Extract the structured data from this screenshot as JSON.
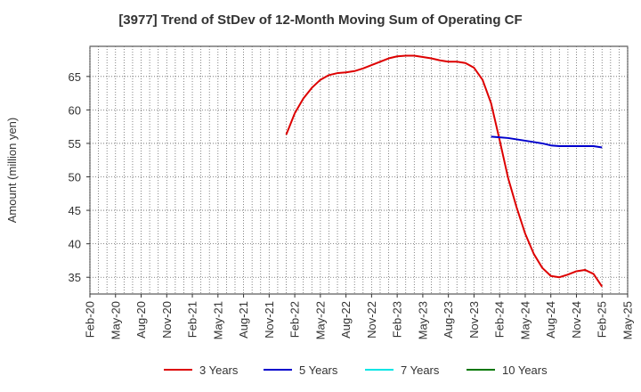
{
  "chart_data": {
    "type": "line",
    "title": "[3977]  Trend of StDev of 12-Month Moving Sum of Operating CF",
    "ylabel": "Amount (million yen)",
    "xlabel": "",
    "ylim": [
      32.5,
      69.5
    ],
    "yticks": [
      35,
      40,
      45,
      50,
      55,
      60,
      65
    ],
    "xticks": [
      "Feb-20",
      "May-20",
      "Aug-20",
      "Nov-20",
      "Feb-21",
      "May-21",
      "Aug-21",
      "Nov-21",
      "Feb-22",
      "May-22",
      "Aug-22",
      "Nov-22",
      "Feb-23",
      "May-23",
      "Aug-23",
      "Nov-23",
      "Feb-24",
      "May-24",
      "Aug-24",
      "Nov-24",
      "Feb-25",
      "May-25"
    ],
    "grid": true,
    "legend_position": "bottom",
    "series": [
      {
        "name": "3 Years",
        "color": "#dd0000",
        "points": [
          [
            "Jan-22",
            56.3
          ],
          [
            "Feb-22",
            59.5
          ],
          [
            "Mar-22",
            61.7
          ],
          [
            "Apr-22",
            63.3
          ],
          [
            "May-22",
            64.5
          ],
          [
            "Jun-22",
            65.2
          ],
          [
            "Jul-22",
            65.5
          ],
          [
            "Aug-22",
            65.6
          ],
          [
            "Sep-22",
            65.8
          ],
          [
            "Oct-22",
            66.2
          ],
          [
            "Nov-22",
            66.7
          ],
          [
            "Dec-22",
            67.2
          ],
          [
            "Jan-23",
            67.7
          ],
          [
            "Feb-23",
            68.0
          ],
          [
            "Mar-23",
            68.1
          ],
          [
            "Apr-23",
            68.1
          ],
          [
            "May-23",
            67.9
          ],
          [
            "Jun-23",
            67.7
          ],
          [
            "Jul-23",
            67.4
          ],
          [
            "Aug-23",
            67.2
          ],
          [
            "Sep-23",
            67.2
          ],
          [
            "Oct-23",
            67.0
          ],
          [
            "Nov-23",
            66.3
          ],
          [
            "Dec-23",
            64.5
          ],
          [
            "Jan-24",
            61.0
          ],
          [
            "Feb-24",
            55.5
          ],
          [
            "Mar-24",
            49.8
          ],
          [
            "Apr-24",
            45.4
          ],
          [
            "May-24",
            41.5
          ],
          [
            "Jun-24",
            38.5
          ],
          [
            "Jul-24",
            36.4
          ],
          [
            "Aug-24",
            35.2
          ],
          [
            "Sep-24",
            35.0
          ],
          [
            "Oct-24",
            35.4
          ],
          [
            "Nov-24",
            35.9
          ],
          [
            "Dec-24",
            36.1
          ],
          [
            "Jan-25",
            35.5
          ],
          [
            "Feb-25",
            33.6
          ]
        ]
      },
      {
        "name": "5 Years",
        "color": "#0000cc",
        "points": [
          [
            "Jan-24",
            56.0
          ],
          [
            "Feb-24",
            55.9
          ],
          [
            "Mar-24",
            55.8
          ],
          [
            "Apr-24",
            55.6
          ],
          [
            "May-24",
            55.4
          ],
          [
            "Jun-24",
            55.2
          ],
          [
            "Jul-24",
            55.0
          ],
          [
            "Aug-24",
            54.7
          ],
          [
            "Sep-24",
            54.6
          ],
          [
            "Oct-24",
            54.6
          ],
          [
            "Nov-24",
            54.6
          ],
          [
            "Dec-24",
            54.6
          ],
          [
            "Jan-25",
            54.6
          ],
          [
            "Feb-25",
            54.4
          ]
        ]
      },
      {
        "name": "7 Years",
        "color": "#00e5e5",
        "points": []
      },
      {
        "name": "10 Years",
        "color": "#007700",
        "points": []
      }
    ]
  }
}
